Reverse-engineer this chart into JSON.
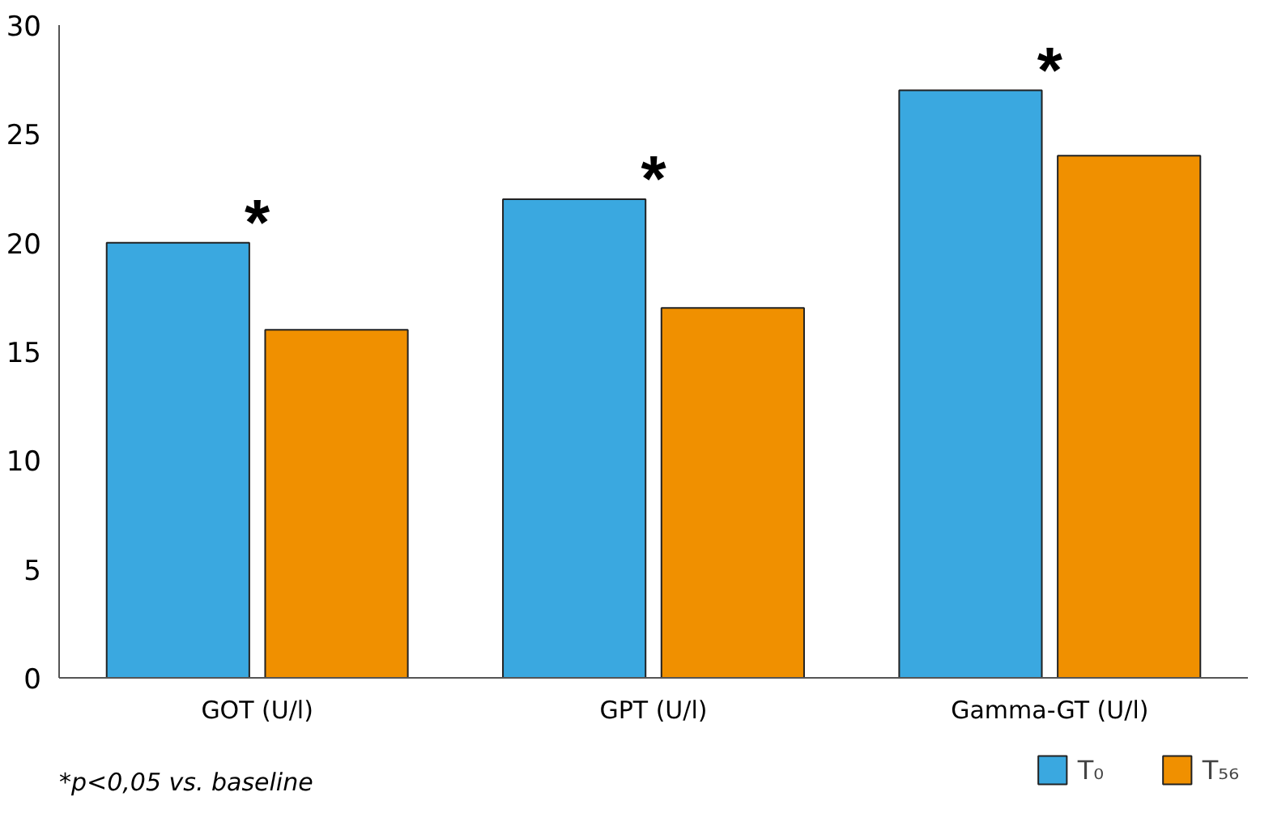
{
  "chart_data": {
    "type": "bar",
    "categories": [
      "GOT (U/l)",
      "GPT (U/l)",
      "Gamma-GT (U/l)"
    ],
    "series": [
      {
        "name": "T₀",
        "color": "#3aa8e0",
        "values": [
          20,
          22,
          27
        ]
      },
      {
        "name": "T₅₆",
        "color": "#f09000",
        "values": [
          16,
          17,
          24
        ]
      }
    ],
    "ylim": [
      0,
      30
    ],
    "yticks": [
      0,
      5,
      10,
      15,
      20,
      25,
      30
    ],
    "grid": false,
    "legend": "bottom right",
    "annotations": [
      {
        "text": "*",
        "x": "GOT (U/l)",
        "y": 20
      },
      {
        "text": "*",
        "x": "GPT (U/l)",
        "y": 22
      },
      {
        "text": "*",
        "x": "Gamma-GT (U/l)",
        "y": 27
      },
      "*p<0,05 vs. baseline"
    ]
  }
}
